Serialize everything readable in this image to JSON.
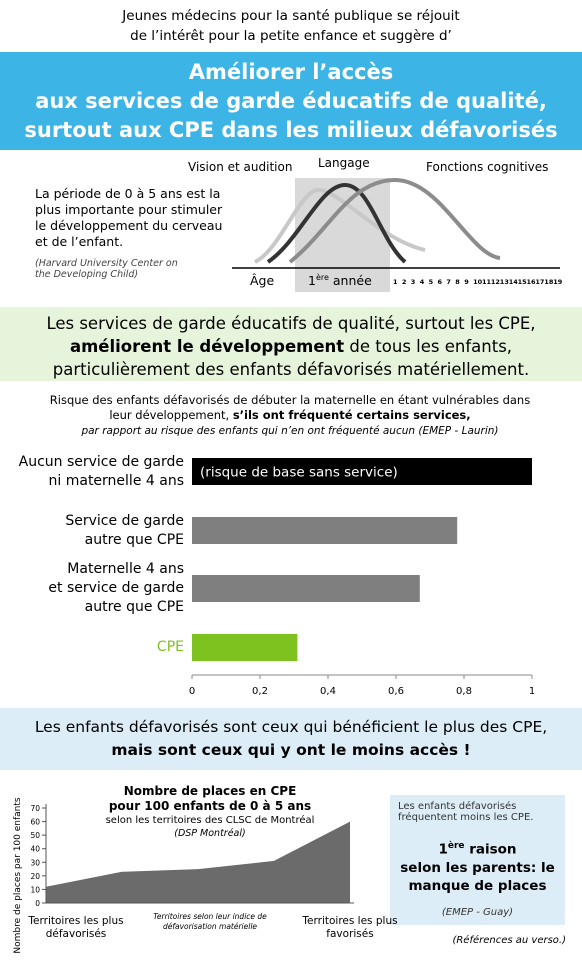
{
  "header": {
    "line1": "Jeunes médecins pour la santé publique se réjouit",
    "line2": "de l’intérêt pour la petite enfance et suggère d’"
  },
  "banner": {
    "lines": [
      "Améliorer l’accès",
      "aux services de garde éducatifs de qualité,",
      "surtout aux CPE dans les milieux défavorisés"
    ]
  },
  "development": {
    "text": "La période de 0 à 5 ans est la plus importante pour stimuler le développement du cerveau et de l’enfant.",
    "source": "(Harvard University Center on the Developing Child)",
    "curve_labels": [
      "Vision et audition",
      "Langage",
      "Fonctions cognitives"
    ],
    "axis_label": "Âge",
    "first_year": {
      "number": "1",
      "suffix": "ère",
      "text": " année"
    },
    "ages": [
      1,
      2,
      3,
      4,
      5,
      6,
      7,
      8,
      9,
      10,
      11,
      12,
      13,
      14,
      15,
      16,
      17,
      18,
      19
    ]
  },
  "message_green": {
    "line1": "Les services de garde éducatifs de qualité, surtout les CPE,",
    "bold": "améliorent le développement",
    "rest": " de tous les enfants,",
    "line3": "particulièrement des enfants défavorisés matériellement."
  },
  "message_blue": {
    "line1": "Les enfants défavorisés sont ceux qui bénéficient le plus des CPE,",
    "line2": "mais sont ceux qui y ont le moins accès !"
  },
  "side_box": {
    "intro": "Les enfants défavorisés fréquentent moins les CPE.",
    "number": "1",
    "suffix": "ère",
    "word": " raison",
    "line2": "selon les parents: le",
    "line3": "manque de places",
    "source": "(EMEP - Guay)"
  },
  "footer": "(Références au verso.)",
  "chart_data": [
    {
      "type": "bar",
      "orientation": "horizontal",
      "title": "Risque des enfants défavorisés de débuter la maternelle en étant vulnérables dans leur développement,",
      "title_bold": "s’ils ont fréquenté certains services,",
      "subtitle": "par rapport au risque des enfants qui n’en ont fréquenté aucun (EMEP - Laurin)",
      "categories": [
        "Aucun service de garde\nni maternelle 4 ans",
        "Service de garde\nautre que CPE",
        "Maternelle 4 ans\net service de garde\nautre que CPE",
        "CPE"
      ],
      "values": [
        1,
        0.78,
        0.67,
        0.31
      ],
      "colors": [
        "#000000",
        "#7f7f7f",
        "#7f7f7f",
        "#7dc21e"
      ],
      "label_colors": [
        "#000000",
        "#000000",
        "#000000",
        "#7dc21e"
      ],
      "annotation": "(risque de base sans service)",
      "xlim": [
        0,
        1
      ],
      "xticks": [
        0,
        {
          "value": 0.2,
          "label": "0,2"
        },
        {
          "value": 0.4,
          "label": "0,4"
        },
        {
          "value": 0.6,
          "label": "0,6"
        },
        {
          "value": 0.8,
          "label": "0,8"
        },
        1
      ]
    },
    {
      "type": "area",
      "title": "Nombre de places en CPE\npour 100 enfants de 0 à 5 ans",
      "subtitle": "selon les territoires des CLSC de Montréal",
      "source": "(DSP Montréal)",
      "ylabel": "Nombre de places par 100 enfants",
      "categories": [
        "Territoires les plus\ndéfavorisés",
        null,
        null,
        null,
        "Territoires les plus\nfavorisés"
      ],
      "x_note": "Territoires selon leur indice de\ndéfavorisation matérielle",
      "values": [
        12,
        23,
        25,
        31,
        60
      ],
      "color": "#6b6b6b",
      "ylim": [
        0,
        70
      ],
      "yticks": [
        0,
        10,
        20,
        30,
        40,
        50,
        60,
        70
      ]
    }
  ]
}
